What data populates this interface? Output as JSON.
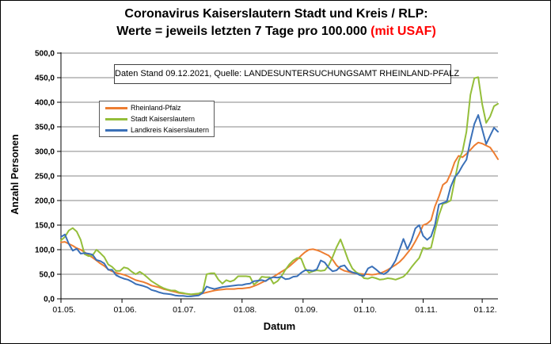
{
  "title": {
    "line1": "Coronavirus Kaiserslautern Stadt und Kreis / RLP:",
    "line2_prefix": "Werte = jeweils letzten 7 Tage pro 100.000 ",
    "line2_highlight": "(mit USAF)"
  },
  "info_box": "Daten Stand 09.12.2021, Quelle: LANDESUNTERSUCHUNGSAMT RHEINLAND-PFALZ",
  "colors": {
    "highlight_red": "#FF0000",
    "gridline": "#878787",
    "axis": "#000000",
    "series_rlp": "#ED7D31",
    "series_stadt": "#94BE3A",
    "series_landkreis": "#3A70B8"
  },
  "chart_data": {
    "type": "line",
    "title": "Coronavirus Kaiserslautern Stadt und Kreis / RLP: Werte = jeweils letzten 7 Tage pro 100.000 (mit USAF)",
    "xlabel": "Datum",
    "ylabel": "Anzahl Personen",
    "grid": "horizontal",
    "legend_position": "inside-upper-left",
    "x_axis": {
      "start_date": "01.05.2021",
      "end_date": "09.12.2021",
      "range_days": [
        0,
        222
      ],
      "tick_days": [
        0,
        31,
        61,
        92,
        123,
        153,
        184,
        214
      ],
      "tick_labels": [
        "01.05.",
        "01.06.",
        "01.07.",
        "01.08.",
        "01.09.",
        "01.10.",
        "01.11.",
        "01.12."
      ]
    },
    "y_axis": {
      "min": 0,
      "max": 500,
      "step": 50,
      "tick_labels": [
        "0,0",
        "50,0",
        "100,0",
        "150,0",
        "200,0",
        "250,0",
        "300,0",
        "350,0",
        "400,0",
        "450,0",
        "500,0"
      ]
    },
    "sample_step_days": 2,
    "series": [
      {
        "name": "Rheinland-Pfalz",
        "color": "#ED7D31",
        "values": [
          115,
          116,
          112,
          108,
          103,
          100,
          95,
          89,
          84,
          78,
          72,
          67,
          60,
          56,
          53,
          51,
          49,
          46,
          42,
          38,
          36,
          34,
          31,
          27,
          25,
          23,
          20,
          18,
          16,
          14,
          12,
          11,
          10,
          9,
          9,
          10,
          11,
          13,
          15,
          17,
          18,
          19,
          20,
          20,
          20,
          21,
          21,
          22,
          23,
          26,
          29,
          33,
          37,
          41,
          45,
          50,
          55,
          60,
          66,
          73,
          80,
          88,
          95,
          100,
          101,
          99,
          96,
          92,
          88,
          80,
          68,
          61,
          57,
          55,
          53,
          52,
          51,
          50,
          50,
          49,
          50,
          52,
          55,
          59,
          64,
          69,
          75,
          83,
          93,
          103,
          117,
          132,
          150,
          153,
          160,
          188,
          208,
          232,
          238,
          255,
          278,
          291,
          288,
          295,
          303,
          312,
          318,
          316,
          312,
          308,
          297,
          284
        ]
      },
      {
        "name": "Stadt Kaiserslautern",
        "color": "#94BE3A",
        "values": [
          119,
          126,
          139,
          144,
          137,
          120,
          91,
          87,
          88,
          100,
          93,
          85,
          70,
          65,
          57,
          57,
          64,
          62,
          55,
          50,
          55,
          50,
          43,
          36,
          31,
          26,
          22,
          19,
          17,
          17,
          13,
          12,
          10,
          9,
          10,
          11,
          14,
          50,
          52,
          52,
          39,
          31,
          38,
          35,
          38,
          46,
          46,
          46,
          45,
          29,
          35,
          45,
          44,
          44,
          31,
          36,
          46,
          59,
          70,
          78,
          83,
          82,
          62,
          53,
          56,
          58,
          57,
          58,
          68,
          85,
          105,
          121,
          100,
          78,
          62,
          54,
          50,
          42,
          41,
          44,
          42,
          39,
          40,
          42,
          41,
          39,
          42,
          45,
          53,
          64,
          74,
          83,
          104,
          102,
          104,
          138,
          170,
          193,
          196,
          200,
          241,
          280,
          300,
          340,
          415,
          449,
          451,
          396,
          358,
          371,
          392,
          397
        ]
      },
      {
        "name": "Landkreis Kaiserslautern",
        "color": "#3A70B8",
        "values": [
          126,
          131,
          112,
          98,
          102,
          92,
          93,
          92,
          90,
          79,
          77,
          72,
          59,
          59,
          48,
          44,
          41,
          39,
          35,
          30,
          28,
          26,
          23,
          18,
          16,
          13,
          11,
          10,
          9,
          7,
          6,
          6,
          5,
          5,
          6,
          7,
          12,
          25,
          22,
          20,
          22,
          24,
          25,
          26,
          27,
          28,
          28,
          30,
          31,
          36,
          37,
          38,
          36,
          42,
          44,
          43,
          45,
          40,
          41,
          45,
          46,
          53,
          58,
          58,
          57,
          60,
          78,
          74,
          63,
          56,
          58,
          66,
          68,
          58,
          54,
          52,
          48,
          47,
          62,
          66,
          60,
          53,
          50,
          55,
          65,
          78,
          100,
          122,
          101,
          118,
          143,
          150,
          128,
          120,
          127,
          150,
          192,
          195,
          198,
          228,
          247,
          257,
          271,
          283,
          322,
          356,
          374,
          345,
          315,
          332,
          348,
          340
        ]
      }
    ]
  }
}
